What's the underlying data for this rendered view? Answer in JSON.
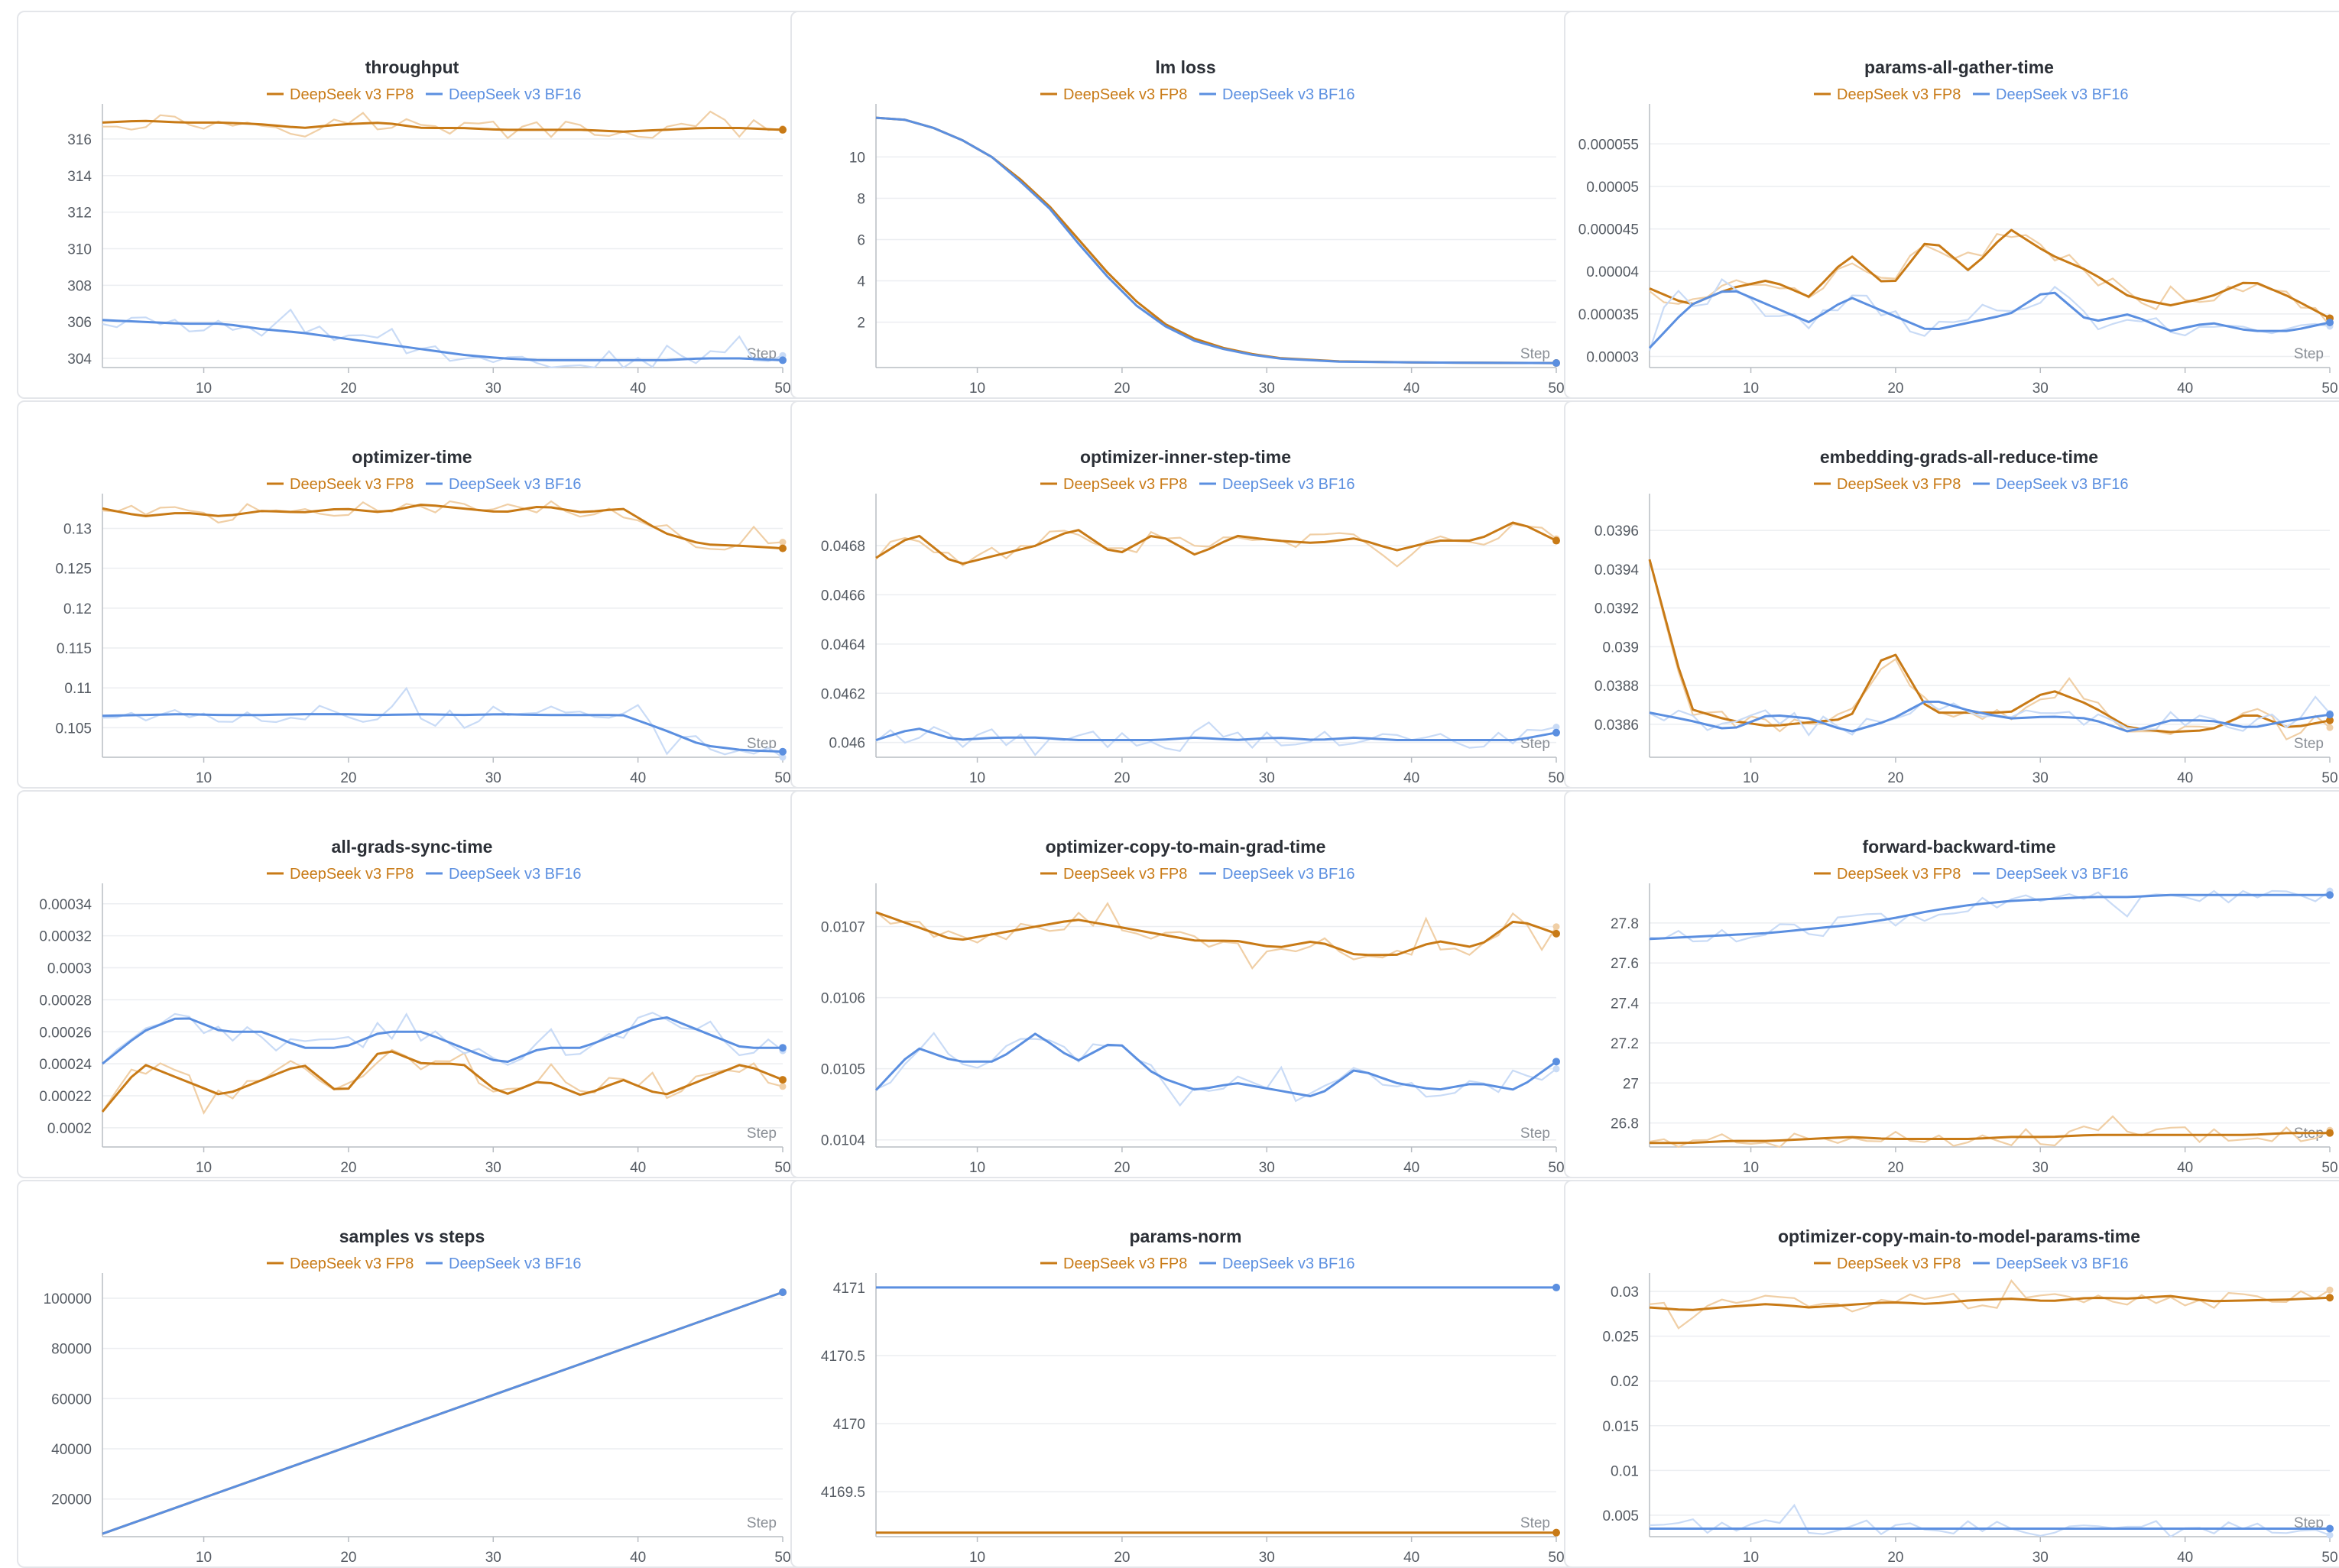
{
  "series_names": [
    "DeepSeek v3 FP8",
    "DeepSeek v3 BF16"
  ],
  "colors": {
    "fp8": "#c87a16",
    "bf16": "#5b8fe0",
    "fp8_raw": "#f0cfa6",
    "bf16_raw": "#c9dbf6",
    "grid": "#eceef1",
    "axis": "#b9bdc3"
  },
  "step_label": "Step",
  "chart_data": [
    {
      "type": "line",
      "title": "throughput",
      "xlabel": "Step",
      "xlim": [
        3,
        50
      ],
      "ylim": [
        303.5,
        317.5
      ],
      "xticks": [
        10,
        20,
        30,
        40,
        50
      ],
      "yticks": [
        304,
        306,
        308,
        310,
        312,
        314,
        316
      ],
      "series": [
        {
          "name": "DeepSeek v3 FP8",
          "smoothed": true,
          "x": [
            3,
            50
          ],
          "anchors": [
            316.9,
            317.0,
            316.9,
            316.9,
            316.8,
            316.6,
            316.8,
            316.9,
            316.6,
            316.6,
            316.5,
            316.5,
            316.5,
            316.4,
            316.5,
            316.6,
            316.6,
            316.5
          ]
        },
        {
          "name": "DeepSeek v3 BF16",
          "smoothed": true,
          "x": [
            3,
            50
          ],
          "anchors": [
            306.1,
            306.0,
            305.9,
            305.9,
            305.6,
            305.4,
            305.1,
            304.8,
            304.5,
            304.2,
            304.0,
            303.9,
            303.9,
            303.9,
            303.9,
            304.0,
            304.0,
            303.9
          ]
        }
      ]
    },
    {
      "type": "line",
      "title": "lm loss",
      "xlabel": "Step",
      "xlim": [
        3,
        50
      ],
      "ylim": [
        -0.2,
        12.2
      ],
      "xticks": [
        10,
        20,
        30,
        40,
        50
      ],
      "yticks": [
        2,
        4,
        6,
        8,
        10
      ],
      "series": [
        {
          "name": "DeepSeek v3 FP8",
          "smoothed": false,
          "x": [
            3,
            5,
            7,
            9,
            11,
            13,
            15,
            17,
            19,
            21,
            23,
            25,
            27,
            29,
            31,
            35,
            40,
            45,
            50
          ],
          "y": [
            11.9,
            11.8,
            11.4,
            10.8,
            10.0,
            8.9,
            7.6,
            6.0,
            4.4,
            3.0,
            1.9,
            1.2,
            0.75,
            0.45,
            0.25,
            0.1,
            0.05,
            0.03,
            0.02
          ]
        },
        {
          "name": "DeepSeek v3 BF16",
          "smoothed": false,
          "x": [
            3,
            5,
            7,
            9,
            11,
            13,
            15,
            17,
            19,
            21,
            23,
            25,
            27,
            29,
            31,
            35,
            40,
            45,
            50
          ],
          "y": [
            11.9,
            11.8,
            11.4,
            10.8,
            10.0,
            8.8,
            7.5,
            5.8,
            4.2,
            2.8,
            1.8,
            1.1,
            0.7,
            0.42,
            0.23,
            0.09,
            0.05,
            0.03,
            0.02
          ]
        }
      ]
    },
    {
      "type": "line",
      "title": "params-all-gather-time",
      "xlabel": "Step",
      "xlim": [
        3,
        50
      ],
      "ylim": [
        2.87e-05,
        5.88e-05
      ],
      "xticks": [
        10,
        20,
        30,
        40,
        50
      ],
      "yticks": [
        3e-05,
        3.5e-05,
        4e-05,
        4.5e-05,
        5e-05,
        5.5e-05
      ],
      "series": [
        {
          "name": "DeepSeek v3 FP8",
          "smoothed": true,
          "x": [
            3,
            50
          ],
          "anchors": [
            3.8e-05,
            3.6e-05,
            3.8e-05,
            3.9e-05,
            3.7e-05,
            4.2e-05,
            3.8e-05,
            4.4e-05,
            4e-05,
            4.5e-05,
            4.2e-05,
            4e-05,
            3.7e-05,
            3.6e-05,
            3.7e-05,
            3.9e-05,
            3.7e-05,
            3.45e-05
          ]
        },
        {
          "name": "DeepSeek v3 BF16",
          "smoothed": true,
          "x": [
            3,
            50
          ],
          "anchors": [
            3.1e-05,
            3.6e-05,
            3.8e-05,
            3.6e-05,
            3.4e-05,
            3.7e-05,
            3.5e-05,
            3.3e-05,
            3.4e-05,
            3.5e-05,
            3.8e-05,
            3.4e-05,
            3.5e-05,
            3.3e-05,
            3.4e-05,
            3.3e-05,
            3.3e-05,
            3.4e-05
          ]
        }
      ]
    },
    {
      "type": "line",
      "title": "optimizer-time",
      "xlabel": "Step",
      "xlim": [
        3,
        50
      ],
      "ylim": [
        0.1013,
        0.1334
      ],
      "xticks": [
        10,
        20,
        30,
        40,
        50
      ],
      "yticks": [
        0.105,
        0.11,
        0.115,
        0.12,
        0.125,
        0.13
      ],
      "series": [
        {
          "name": "DeepSeek v3 FP8",
          "smoothed": true,
          "x": [
            3,
            50
          ],
          "anchors": [
            0.1325,
            0.1315,
            0.132,
            0.1315,
            0.1322,
            0.132,
            0.1325,
            0.132,
            0.133,
            0.1325,
            0.132,
            0.1328,
            0.132,
            0.1325,
            0.1295,
            0.128,
            0.1278,
            0.1275
          ]
        },
        {
          "name": "DeepSeek v3 BF16",
          "smoothed": true,
          "x": [
            3,
            50
          ],
          "anchors": [
            0.1065,
            0.1066,
            0.1067,
            0.1066,
            0.1066,
            0.1067,
            0.1067,
            0.1066,
            0.1067,
            0.1066,
            0.1067,
            0.1066,
            0.1066,
            0.1066,
            0.1048,
            0.1028,
            0.1022,
            0.102
          ]
        }
      ]
    },
    {
      "type": "line",
      "title": "optimizer-inner-step-time",
      "xlabel": "Step",
      "xlim": [
        3,
        50
      ],
      "ylim": [
        0.04594,
        0.04698
      ],
      "xticks": [
        10,
        20,
        30,
        40,
        50
      ],
      "yticks": [
        0.046,
        0.0462,
        0.0464,
        0.0466,
        0.0468
      ],
      "series": [
        {
          "name": "DeepSeek v3 FP8",
          "smoothed": true,
          "x": [
            3,
            50
          ],
          "anchors": [
            0.04675,
            0.04685,
            0.04672,
            0.04676,
            0.0468,
            0.04687,
            0.04676,
            0.04685,
            0.04676,
            0.04684,
            0.04682,
            0.04681,
            0.04683,
            0.04678,
            0.04682,
            0.04682,
            0.0469,
            0.04682
          ]
        },
        {
          "name": "DeepSeek v3 BF16",
          "smoothed": true,
          "x": [
            3,
            50
          ],
          "anchors": [
            0.04601,
            0.04606,
            0.04601,
            0.04602,
            0.04602,
            0.04601,
            0.04601,
            0.04601,
            0.04602,
            0.04601,
            0.04602,
            0.04601,
            0.04602,
            0.04601,
            0.04601,
            0.04601,
            0.04601,
            0.04604
          ]
        }
      ]
    },
    {
      "type": "line",
      "title": "embedding-grads-all-reduce-time",
      "xlabel": "Step",
      "xlim": [
        3,
        50
      ],
      "ylim": [
        0.03843,
        0.03975
      ],
      "xticks": [
        10,
        20,
        30,
        40,
        50
      ],
      "yticks": [
        0.0386,
        0.0388,
        0.039,
        0.0392,
        0.0394,
        0.0396
      ],
      "series": [
        {
          "name": "DeepSeek v3 FP8",
          "smoothed": true,
          "x": [
            3,
            50
          ],
          "anchors": [
            0.03945,
            0.03868,
            0.03862,
            0.03859,
            0.03861,
            0.03863,
            0.03901,
            0.03866,
            0.03866,
            0.03866,
            0.03878,
            0.0387,
            0.03858,
            0.03856,
            0.03857,
            0.03866,
            0.03858,
            0.03862
          ]
        },
        {
          "name": "DeepSeek v3 BF16",
          "smoothed": true,
          "x": [
            3,
            50
          ],
          "anchors": [
            0.03866,
            0.03862,
            0.03857,
            0.03865,
            0.03863,
            0.03856,
            0.03862,
            0.03873,
            0.03867,
            0.03863,
            0.03864,
            0.03863,
            0.03856,
            0.03862,
            0.03862,
            0.03858,
            0.03862,
            0.03865
          ]
        }
      ]
    },
    {
      "type": "line",
      "title": "all-grads-sync-time",
      "xlabel": "Step",
      "xlim": [
        3,
        50
      ],
      "ylim": [
        0.000188,
        0.000348
      ],
      "xticks": [
        10,
        20,
        30,
        40,
        50
      ],
      "yticks": [
        0.0002,
        0.00022,
        0.00024,
        0.00026,
        0.00028,
        0.0003,
        0.00032,
        0.00034
      ],
      "series": [
        {
          "name": "DeepSeek v3 FP8",
          "smoothed": true,
          "x": [
            3,
            50
          ],
          "anchors": [
            0.00021,
            0.00024,
            0.00023,
            0.00022,
            0.00023,
            0.00024,
            0.00022,
            0.00025,
            0.00024,
            0.00024,
            0.00022,
            0.00023,
            0.00022,
            0.00023,
            0.00022,
            0.00023,
            0.00024,
            0.00023
          ]
        },
        {
          "name": "DeepSeek v3 BF16",
          "smoothed": true,
          "x": [
            3,
            50
          ],
          "anchors": [
            0.00024,
            0.00026,
            0.00027,
            0.00026,
            0.00026,
            0.00025,
            0.00025,
            0.00026,
            0.00026,
            0.00025,
            0.00024,
            0.00025,
            0.00025,
            0.00026,
            0.00027,
            0.00026,
            0.00025,
            0.00025
          ]
        }
      ]
    },
    {
      "type": "line",
      "title": "optimizer-copy-to-main-grad-time",
      "xlabel": "Step",
      "xlim": [
        3,
        50
      ],
      "ylim": [
        0.01039,
        0.01075
      ],
      "xticks": [
        10,
        20,
        30,
        40,
        50
      ],
      "yticks": [
        0.0104,
        0.0105,
        0.0106,
        0.0107
      ],
      "series": [
        {
          "name": "DeepSeek v3 FP8",
          "smoothed": true,
          "x": [
            3,
            50
          ],
          "anchors": [
            0.01072,
            0.0107,
            0.01068,
            0.01069,
            0.0107,
            0.01071,
            0.0107,
            0.01069,
            0.01068,
            0.01068,
            0.01067,
            0.01068,
            0.01066,
            0.01066,
            0.01068,
            0.01067,
            0.01071,
            0.01069
          ]
        },
        {
          "name": "DeepSeek v3 BF16",
          "smoothed": true,
          "x": [
            3,
            50
          ],
          "anchors": [
            0.01047,
            0.01053,
            0.01051,
            0.01051,
            0.01055,
            0.01051,
            0.01054,
            0.01049,
            0.01047,
            0.01048,
            0.01047,
            0.01046,
            0.0105,
            0.01048,
            0.01047,
            0.01048,
            0.01047,
            0.01051
          ]
        }
      ]
    },
    {
      "type": "line",
      "title": "forward-backward-time",
      "xlabel": "Step",
      "xlim": [
        3,
        50
      ],
      "ylim": [
        26.68,
        27.96
      ],
      "xticks": [
        10,
        20,
        30,
        40,
        50
      ],
      "yticks": [
        26.8,
        27,
        27.2,
        27.4,
        27.6,
        27.8
      ],
      "series": [
        {
          "name": "DeepSeek v3 FP8",
          "smoothed": true,
          "x": [
            3,
            50
          ],
          "anchors": [
            26.7,
            26.7,
            26.71,
            26.71,
            26.72,
            26.73,
            26.72,
            26.72,
            26.72,
            26.73,
            26.73,
            26.74,
            26.74,
            26.74,
            26.74,
            26.74,
            26.75,
            26.75
          ]
        },
        {
          "name": "DeepSeek v3 BF16",
          "smoothed": true,
          "x": [
            3,
            50
          ],
          "anchors": [
            27.72,
            27.73,
            27.74,
            27.75,
            27.77,
            27.79,
            27.82,
            27.86,
            27.89,
            27.91,
            27.92,
            27.93,
            27.93,
            27.94,
            27.94,
            27.94,
            27.94,
            27.94
          ]
        }
      ]
    },
    {
      "type": "line",
      "title": "samples vs steps",
      "xlabel": "Step",
      "xlim": [
        3,
        50
      ],
      "ylim": [
        5000,
        107000
      ],
      "xticks": [
        10,
        20,
        30,
        40,
        50
      ],
      "yticks": [
        20000,
        40000,
        60000,
        80000,
        100000
      ],
      "series": [
        {
          "name": "DeepSeek v3 FP8",
          "smoothed": false,
          "x": [
            3,
            50
          ],
          "y": [
            6144,
            102400
          ]
        },
        {
          "name": "DeepSeek v3 BF16",
          "smoothed": false,
          "x": [
            3,
            50
          ],
          "y": [
            6144,
            102400
          ]
        }
      ]
    },
    {
      "type": "line",
      "title": "params-norm",
      "xlabel": "Step",
      "xlim": [
        3,
        50
      ],
      "ylim": [
        4169.17,
        4171.05
      ],
      "xticks": [
        10,
        20,
        30,
        40,
        50
      ],
      "yticks": [
        4169.5,
        4170,
        4170.5,
        4171
      ],
      "series": [
        {
          "name": "DeepSeek v3 FP8",
          "smoothed": false,
          "x": [
            3,
            50
          ],
          "y": [
            4169.2,
            4169.2
          ]
        },
        {
          "name": "DeepSeek v3 BF16",
          "smoothed": false,
          "x": [
            3,
            50
          ],
          "y": [
            4171,
            4171
          ]
        }
      ]
    },
    {
      "type": "line",
      "title": "optimizer-copy-main-to-model-params-time",
      "xlabel": "Step",
      "xlim": [
        3,
        50
      ],
      "ylim": [
        0.0026,
        0.0312
      ],
      "xticks": [
        10,
        20,
        30,
        40,
        50
      ],
      "yticks": [
        0.005,
        0.01,
        0.015,
        0.02,
        0.025,
        0.03
      ],
      "series": [
        {
          "name": "DeepSeek v3 FP8",
          "smoothed": true,
          "x": [
            3,
            50
          ],
          "anchors": [
            0.0282,
            0.0279,
            0.0283,
            0.0286,
            0.0282,
            0.0285,
            0.0288,
            0.0286,
            0.029,
            0.0292,
            0.0289,
            0.0293,
            0.0292,
            0.0295,
            0.0289,
            0.029,
            0.0291,
            0.0293
          ]
        },
        {
          "name": "DeepSeek v3 BF16",
          "smoothed": true,
          "x": [
            3,
            50
          ],
          "anchors": [
            0.0035,
            0.0035,
            0.0035,
            0.0035,
            0.0035,
            0.0035,
            0.0035,
            0.0035,
            0.0035,
            0.0035,
            0.0035,
            0.0035,
            0.0035,
            0.0035,
            0.0035,
            0.0035,
            0.0035,
            0.0035
          ]
        }
      ]
    }
  ]
}
